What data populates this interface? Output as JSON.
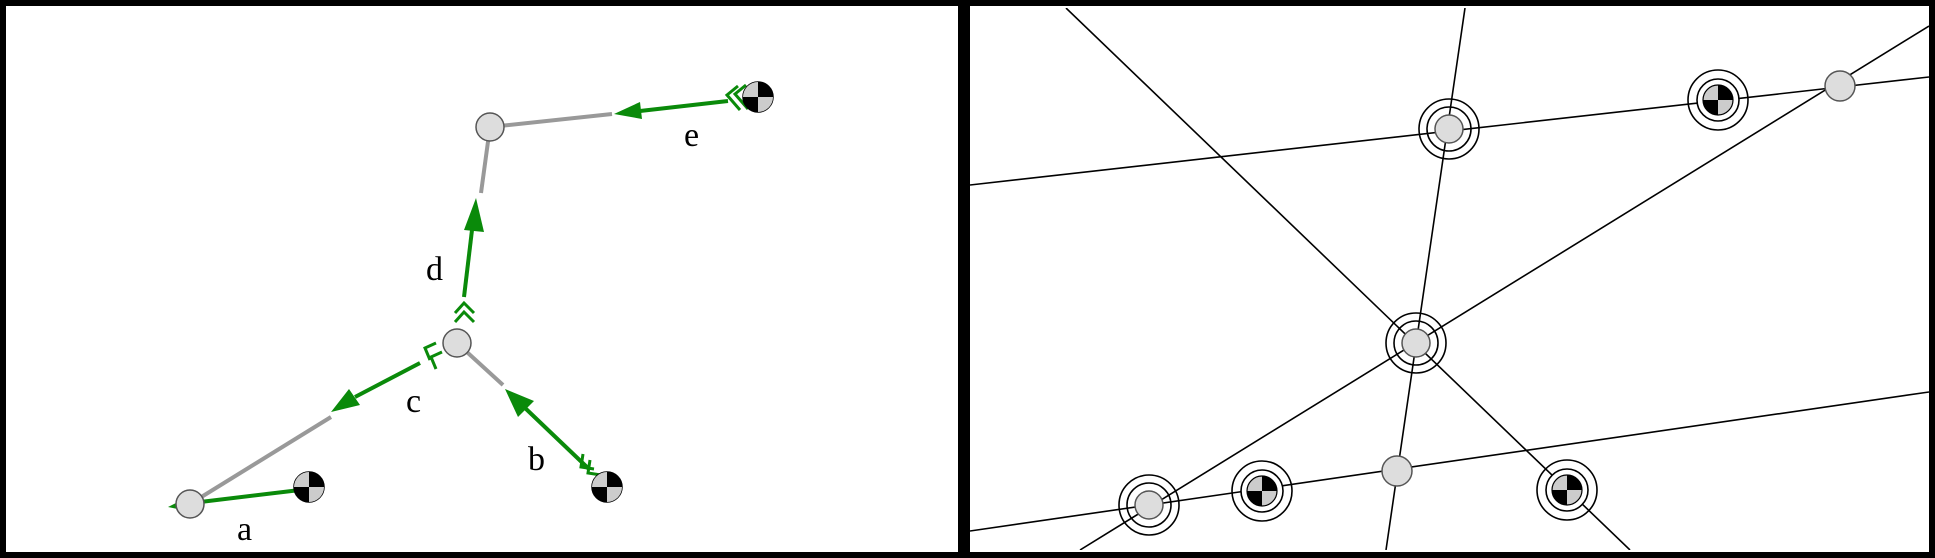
{
  "left_panel": {
    "arrow_labels": {
      "a": "a",
      "b": "b",
      "c": "c",
      "d": "d",
      "e": "e"
    }
  },
  "colors": {
    "arrow": "#0a8a0a",
    "link": "#999999",
    "joint_fill": "#dddddd",
    "frame": "#000000"
  },
  "icons": [
    "joint-circle-icon",
    "center-of-mass-icon",
    "arrowhead-icon",
    "double-chevron-icon"
  ]
}
